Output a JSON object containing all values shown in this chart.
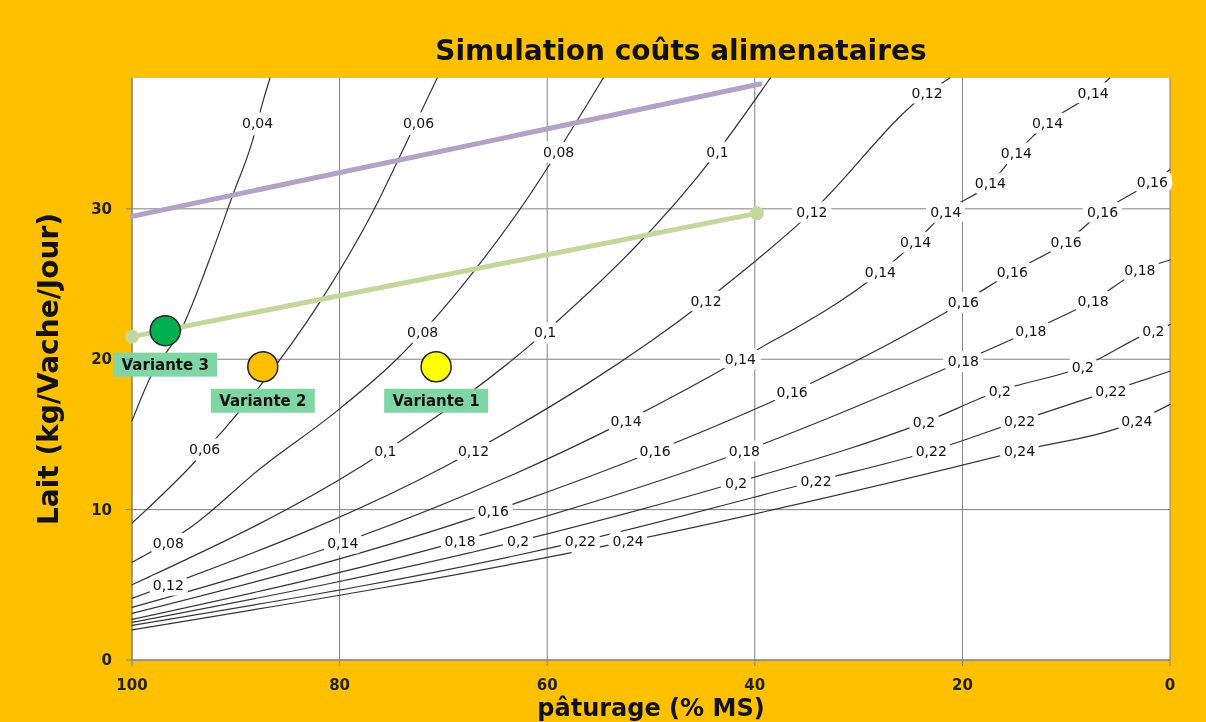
{
  "chart_data": {
    "type": "line",
    "title": "Simulation coûts alimenataires",
    "xlabel": "pâturage (% MS)",
    "ylabel": "Lait (kg/Vache/Jour)",
    "xlim": [
      100,
      0
    ],
    "xticks": [
      100,
      80,
      60,
      40,
      20,
      0
    ],
    "ylim": [
      0,
      38.7
    ],
    "yticks": [
      0,
      10,
      20,
      30
    ],
    "grid": true,
    "series": [
      {
        "color": "#333333",
        "x": [
          100,
          98.3,
          95.1,
          92.5,
          90.3,
          88.4,
          87.4,
          86.7
        ],
        "values": [
          15.9,
          18.7,
          22.2,
          26.7,
          30.9,
          34.5,
          37.1,
          38.7
        ]
      },
      {
        "color": "#333333",
        "x": [
          100,
          94.6,
          91.3,
          87.7,
          81.9,
          76.8,
          73.5,
          70.6
        ],
        "values": [
          9.1,
          12.7,
          15.2,
          18.2,
          23.8,
          29.8,
          34.5,
          38.7
        ]
      },
      {
        "color": "#333333",
        "x": [
          100,
          94.2,
          87.7,
          80,
          74.5,
          68.4,
          62.6,
          54.6
        ],
        "values": [
          6.5,
          8.9,
          12.7,
          16.7,
          20,
          24.7,
          30,
          38.7
        ]
      },
      {
        "color": "#333333",
        "x": [
          100,
          75.6,
          60.2,
          43.6,
          38.5
        ],
        "values": [
          5,
          13.9,
          21.8,
          33.8,
          38.7
        ]
      },
      {
        "color": "#333333",
        "x": [
          100,
          67.1,
          44.7,
          34.5,
          23.4,
          21.2
        ],
        "values": [
          4.1,
          13.9,
          23.9,
          29.8,
          37.7,
          38.7
        ]
      },
      {
        "color": "#333333",
        "x": [
          100,
          79.7,
          52.4,
          41.4,
          27.9,
          24.5,
          21.6,
          17.3,
          14.8,
          11.8,
          7.4,
          5.8
        ],
        "values": [
          3.5,
          7.8,
          15.9,
          20,
          25.8,
          27.8,
          29.8,
          31.7,
          33.7,
          35.7,
          37.7,
          38.7
        ]
      },
      {
        "color": "#333333",
        "x": [
          100,
          65.2,
          49.6,
          36.4,
          19.9,
          15.2,
          10,
          6.5,
          1.7,
          0
        ],
        "values": [
          3.1,
          9.9,
          13.9,
          17.8,
          23.8,
          25.8,
          27.8,
          29.8,
          31.8,
          32.6
        ]
      },
      {
        "color": "#333333",
        "x": [
          100,
          68.4,
          41,
          19.9,
          13.4,
          7.4,
          2.9,
          0
        ],
        "values": [
          2.7,
          7.9,
          13.9,
          19.9,
          21.9,
          23.9,
          25.9,
          26.6
        ]
      },
      {
        "color": "#333333",
        "x": [
          100,
          62.8,
          41.8,
          23.7,
          16.4,
          8.4,
          1.6,
          0
        ],
        "values": [
          2.5,
          7.9,
          11.8,
          15.8,
          17.9,
          19.5,
          21.9,
          22.3
        ]
      },
      {
        "color": "#333333",
        "x": [
          100,
          56.8,
          34.1,
          23,
          14.5,
          5.7,
          0
        ],
        "values": [
          2.3,
          7.9,
          11.9,
          13.9,
          15.9,
          17.9,
          19.2
        ]
      },
      {
        "color": "#333333",
        "x": [
          100,
          52.2,
          14.5,
          3.2,
          0
        ],
        "values": [
          2,
          7.9,
          13.9,
          15.9,
          17
        ]
      },
      {
        "type": "line",
        "color": "#b3a2c7",
        "marker": "none",
        "x": [
          100,
          39.5
        ],
        "values": [
          29.5,
          38.3
        ]
      },
      {
        "type": "line",
        "color": "#c3d69b",
        "marker": "circle",
        "x": [
          100,
          39.8
        ],
        "values": [
          21.5,
          29.7
        ]
      },
      {
        "type": "scatter",
        "name": "Variante 3",
        "color": "#00b050",
        "x": [
          96.8
        ],
        "values": [
          21.9
        ]
      },
      {
        "type": "scatter",
        "name": "Variante 2",
        "color": "#ffc000",
        "x": [
          87.4
        ],
        "values": [
          19.5
        ]
      },
      {
        "type": "scatter",
        "name": "Variante 1",
        "color": "#ffff00",
        "x": [
          70.7
        ],
        "values": [
          19.5
        ]
      }
    ],
    "annotations": [
      {
        "text": "0,04",
        "x": 87.9,
        "y": 35.7
      },
      {
        "text": "0,06",
        "x": 72.4,
        "y": 35.7
      },
      {
        "text": "0,06",
        "x": 93,
        "y": 14
      },
      {
        "text": "0,08",
        "x": 96.5,
        "y": 7.8
      },
      {
        "text": "0,08",
        "x": 72,
        "y": 21.8
      },
      {
        "text": "0,08",
        "x": 58.9,
        "y": 33.8
      },
      {
        "text": "0,1",
        "x": 75.6,
        "y": 13.9
      },
      {
        "text": "0,1",
        "x": 60.2,
        "y": 21.8
      },
      {
        "text": "0,1",
        "x": 43.6,
        "y": 33.8
      },
      {
        "text": "0,12",
        "x": 96.5,
        "y": 5
      },
      {
        "text": "0,12",
        "x": 67.1,
        "y": 13.9
      },
      {
        "text": "0,12",
        "x": 44.7,
        "y": 23.9
      },
      {
        "text": "0,12",
        "x": 34.5,
        "y": 29.8
      },
      {
        "text": "0,12",
        "x": 23.4,
        "y": 37.7
      },
      {
        "text": "0,14",
        "x": 79.7,
        "y": 7.8
      },
      {
        "text": "0,14",
        "x": 52.4,
        "y": 15.9
      },
      {
        "text": "0,14",
        "x": 41.4,
        "y": 20
      },
      {
        "text": "0,14",
        "x": 27.9,
        "y": 25.8
      },
      {
        "text": "0,14",
        "x": 24.5,
        "y": 27.8
      },
      {
        "text": "0,14",
        "x": 21.6,
        "y": 29.8
      },
      {
        "text": "0,14",
        "x": 17.3,
        "y": 31.7
      },
      {
        "text": "0,14",
        "x": 14.8,
        "y": 33.7
      },
      {
        "text": "0,14",
        "x": 11.8,
        "y": 35.7
      },
      {
        "text": "0,14",
        "x": 7.4,
        "y": 37.7
      },
      {
        "text": "0,16",
        "x": 65.2,
        "y": 9.9
      },
      {
        "text": "0,16",
        "x": 49.6,
        "y": 13.9
      },
      {
        "text": "0,16",
        "x": 36.4,
        "y": 17.8
      },
      {
        "text": "0,16",
        "x": 19.9,
        "y": 23.8
      },
      {
        "text": "0,16",
        "x": 15.2,
        "y": 25.8
      },
      {
        "text": "0,16",
        "x": 10,
        "y": 27.8
      },
      {
        "text": "0,16",
        "x": 6.5,
        "y": 29.8
      },
      {
        "text": "0,16",
        "x": 1.7,
        "y": 31.8
      },
      {
        "text": "0,18",
        "x": 68.4,
        "y": 7.9
      },
      {
        "text": "0,18",
        "x": 41,
        "y": 13.9
      },
      {
        "text": "0,18",
        "x": 19.9,
        "y": 19.9
      },
      {
        "text": "0,18",
        "x": 13.4,
        "y": 21.9
      },
      {
        "text": "0,18",
        "x": 7.4,
        "y": 23.9
      },
      {
        "text": "0,18",
        "x": 2.9,
        "y": 25.9
      },
      {
        "text": "0,2",
        "x": 62.8,
        "y": 7.9
      },
      {
        "text": "0,2",
        "x": 41.8,
        "y": 11.8
      },
      {
        "text": "0,2",
        "x": 23.7,
        "y": 15.8
      },
      {
        "text": "0,2",
        "x": 16.4,
        "y": 17.9
      },
      {
        "text": "0,2",
        "x": 8.4,
        "y": 19.5
      },
      {
        "text": "0,2",
        "x": 1.6,
        "y": 21.9
      },
      {
        "text": "0,22",
        "x": 56.8,
        "y": 7.9
      },
      {
        "text": "0,22",
        "x": 34.1,
        "y": 11.9
      },
      {
        "text": "0,22",
        "x": 23,
        "y": 13.9
      },
      {
        "text": "0,22",
        "x": 14.5,
        "y": 15.9
      },
      {
        "text": "0,22",
        "x": 5.7,
        "y": 17.9
      },
      {
        "text": "0,24",
        "x": 52.2,
        "y": 7.9
      },
      {
        "text": "0,24",
        "x": 14.5,
        "y": 13.9
      },
      {
        "text": "0,24",
        "x": 3.2,
        "y": 15.9
      }
    ]
  }
}
